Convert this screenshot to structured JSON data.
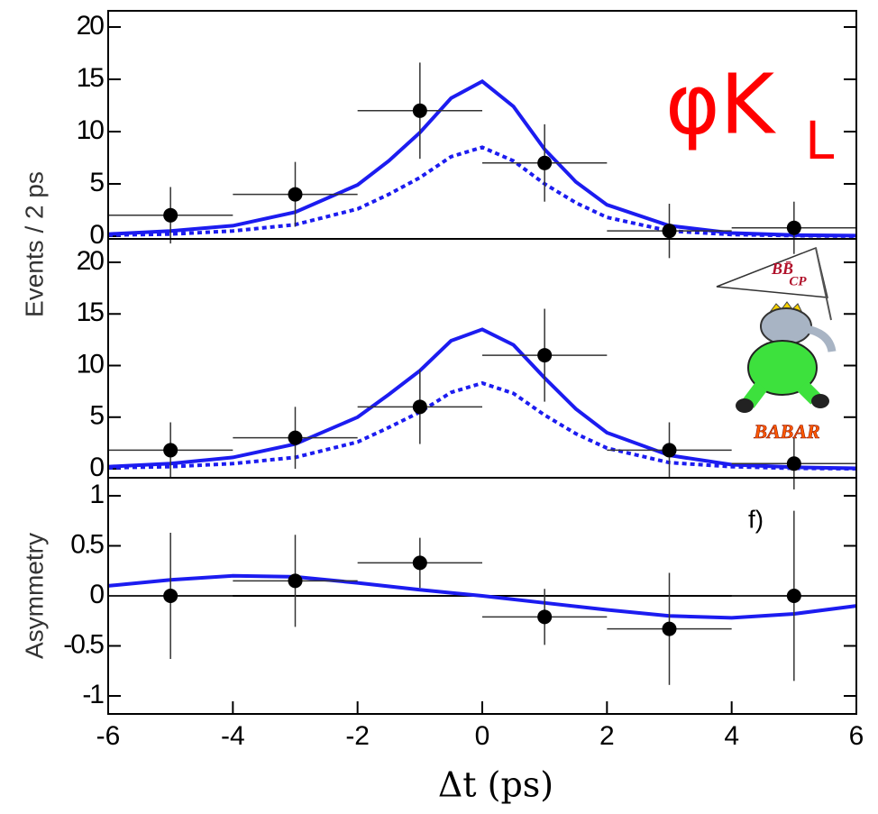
{
  "chart_data": [
    {
      "type": "scatter",
      "ylabel": "Events / 2 ps",
      "x": [
        -5,
        -3,
        -1,
        1,
        3,
        5
      ],
      "values": [
        2,
        4,
        12,
        7,
        0.5,
        0.8
      ],
      "yerr": [
        2.7,
        3.1,
        4.6,
        3.7,
        2.6,
        2.5
      ],
      "xerr": [
        1,
        1,
        1,
        1,
        1,
        1
      ],
      "color": "#000000",
      "series": [
        {
          "color": "#1c1cf0",
          "dash": "solid",
          "x": [
            -6,
            -5,
            -4,
            -3,
            -2,
            -1.5,
            -1,
            -0.5,
            0,
            0.5,
            1,
            1.5,
            2,
            3,
            4,
            5,
            6
          ],
          "values": [
            0.2,
            0.5,
            1.0,
            2.3,
            4.9,
            7.2,
            9.9,
            13.2,
            14.8,
            12.4,
            8.3,
            5.2,
            3.0,
            1.0,
            0.3,
            0.1,
            0.05
          ]
        },
        {
          "color": "#1c1cf0",
          "dash": "dotted",
          "x": [
            -6,
            -5,
            -4,
            -3,
            -2,
            -1.5,
            -1,
            -0.5,
            0,
            0.5,
            1,
            1.5,
            2,
            3,
            4,
            5,
            6
          ],
          "values": [
            0.1,
            0.2,
            0.5,
            1.1,
            2.6,
            4.0,
            5.6,
            7.6,
            8.5,
            7.2,
            5.0,
            3.2,
            1.8,
            0.5,
            0.15,
            0.05,
            0
          ]
        }
      ],
      "xlim": [
        -6,
        6
      ],
      "ylim": [
        -0.26,
        21.55
      ],
      "yticks": [
        0,
        5,
        10,
        15,
        20
      ],
      "annotation": {
        "text": "φK",
        "sub": "L",
        "color": "#ff0000"
      }
    },
    {
      "type": "scatter",
      "x": [
        -5,
        -3,
        -1,
        1,
        3,
        5
      ],
      "values": [
        1.8,
        3,
        6,
        11,
        1.8,
        0.5
      ],
      "yerr": [
        2.7,
        3.0,
        3.6,
        4.5,
        2.7,
        2.5
      ],
      "xerr": [
        1,
        1,
        1,
        1,
        1,
        1
      ],
      "color": "#000000",
      "series": [
        {
          "color": "#1c1cf0",
          "dash": "solid",
          "x": [
            -6,
            -5,
            -4,
            -3,
            -2,
            -1.5,
            -1,
            -0.5,
            0,
            0.5,
            1,
            1.5,
            2,
            3,
            4,
            5,
            6
          ],
          "values": [
            0.2,
            0.5,
            1.1,
            2.4,
            5.0,
            7.2,
            9.5,
            12.4,
            13.5,
            12.0,
            8.8,
            5.8,
            3.5,
            1.3,
            0.4,
            0.15,
            0.05
          ]
        },
        {
          "color": "#1c1cf0",
          "dash": "dotted",
          "x": [
            -6,
            -5,
            -4,
            -3,
            -2,
            -1.5,
            -1,
            -0.5,
            0,
            0.5,
            1,
            1.5,
            2,
            3,
            4,
            5,
            6
          ],
          "values": [
            0.1,
            0.2,
            0.5,
            1.1,
            2.6,
            4.0,
            5.5,
            7.4,
            8.3,
            7.3,
            5.2,
            3.4,
            2.0,
            0.6,
            0.2,
            0.05,
            0
          ]
        }
      ],
      "xlim": [
        -6,
        6
      ],
      "ylim": [
        -0.87,
        22.27
      ],
      "yticks": [
        0,
        5,
        10,
        15,
        20
      ]
    },
    {
      "type": "scatter",
      "ylabel": "Asymmetry",
      "xlabel": "Δt (ps)",
      "panel_label": "f)",
      "x": [
        -5,
        -3,
        -1,
        1,
        3,
        5
      ],
      "values": [
        0,
        0.15,
        0.33,
        -0.21,
        -0.33,
        0
      ],
      "yerr": [
        0.63,
        0.46,
        0.25,
        0.28,
        0.56,
        0.85
      ],
      "xerr": [
        1,
        1,
        1,
        1,
        1,
        1
      ],
      "color": "#000000",
      "series": [
        {
          "color": "#1c1cf0",
          "dash": "solid",
          "x": [
            -6,
            -5,
            -4,
            -3,
            -2,
            -1,
            0,
            1,
            2,
            3,
            4,
            5,
            6
          ],
          "values": [
            0.1,
            0.16,
            0.2,
            0.19,
            0.13,
            0.06,
            0,
            -0.07,
            -0.14,
            -0.2,
            -0.22,
            -0.18,
            -0.1
          ]
        }
      ],
      "xlim": [
        -6,
        6
      ],
      "ylim": [
        -1.18,
        1.18
      ],
      "yticks": [
        1,
        0.5,
        0,
        -0.5,
        -1
      ],
      "xticks": [
        -6,
        -4,
        -2,
        0,
        2,
        4,
        6
      ]
    }
  ],
  "logo": {
    "pennant": "BB̄",
    "pennant_sub": "CP",
    "name": "BABAR"
  }
}
